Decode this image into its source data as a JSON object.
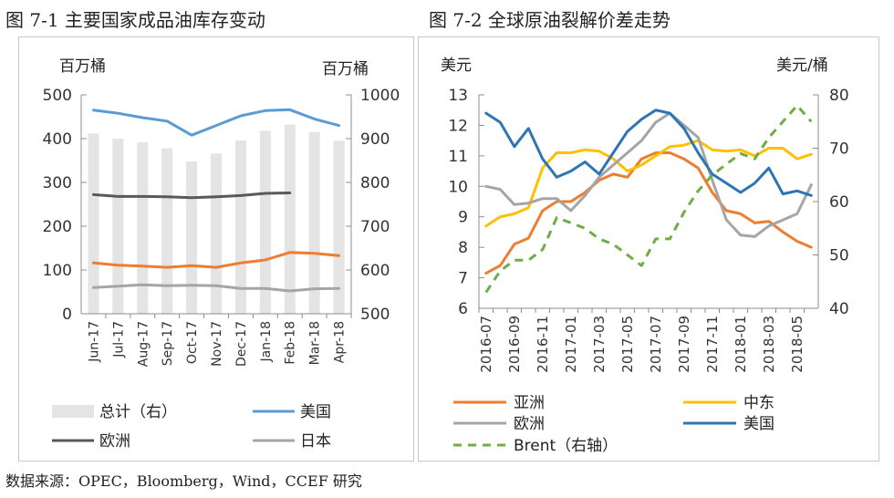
{
  "figure1": {
    "title": "图 7-1  主要国家成品油库存变动",
    "left_unit": "百万桶",
    "right_unit": "百万桶"
  },
  "figure2": {
    "title": "图 7-2  全球原油裂解价差走势",
    "left_unit": "美元",
    "right_unit": "美元/桶"
  },
  "source": "数据来源：OPEC，Bloomberg，Wind，CCEF 研究",
  "chart_data": [
    {
      "type": "line",
      "categories": [
        "Jun-17",
        "Jul-17",
        "Aug-17",
        "Sep-17",
        "Oct-17",
        "Nov-17",
        "Dec-17",
        "Jan-18",
        "Feb-18",
        "Mar-18",
        "Apr-18"
      ],
      "left_ylim": [
        0,
        500
      ],
      "left_ticks": [
        0,
        100,
        200,
        300,
        400,
        500
      ],
      "right_ylim": [
        500,
        1000
      ],
      "right_ticks": [
        500,
        600,
        700,
        800,
        900,
        1000
      ],
      "bars": {
        "name": "总计（右）",
        "color": "#e4e4e4",
        "axis": "right",
        "values": [
          912,
          900,
          892,
          878,
          848,
          866,
          896,
          918,
          932,
          915,
          895
        ]
      },
      "series": [
        {
          "name": "美国",
          "color": "#5b9bd5",
          "axis": "left",
          "values": [
            465,
            458,
            448,
            440,
            408,
            430,
            452,
            464,
            466,
            445,
            430
          ]
        },
        {
          "name": "欧洲",
          "color": "#595959",
          "axis": "left",
          "values": [
            272,
            268,
            268,
            267,
            265,
            267,
            270,
            275,
            276,
            null,
            null
          ]
        },
        {
          "name": "日本",
          "color": "#a5a5a5",
          "axis": "left",
          "values": [
            60,
            63,
            66,
            64,
            65,
            64,
            58,
            58,
            52,
            57,
            58
          ]
        },
        {
          "name": "",
          "color": "#ed7d31",
          "axis": "left",
          "values": [
            116,
            111,
            109,
            106,
            110,
            106,
            116,
            123,
            140,
            138,
            133
          ]
        }
      ],
      "legend": [
        "总计（右）",
        "美国",
        "欧洲",
        "日本"
      ]
    },
    {
      "type": "line",
      "x": [
        "2016-07",
        "2016-08",
        "2016-09",
        "2016-10",
        "2016-11",
        "2016-12",
        "2017-01",
        "2017-02",
        "2017-03",
        "2017-04",
        "2017-05",
        "2017-06",
        "2017-07",
        "2017-08",
        "2017-09",
        "2017-10",
        "2017-11",
        "2017-12",
        "2018-01",
        "2018-02",
        "2018-03",
        "2018-04",
        "2018-05",
        "2018-06"
      ],
      "x_tick_labels": [
        "2016-07",
        "2016-09",
        "2016-11",
        "2017-01",
        "2017-03",
        "2017-05",
        "2017-07",
        "2017-09",
        "2017-11",
        "2018-01",
        "2018-03",
        "2018-05"
      ],
      "left_ylim": [
        6,
        13
      ],
      "left_ticks": [
        6,
        7,
        8,
        9,
        10,
        11,
        12,
        13
      ],
      "right_ylim": [
        40,
        80
      ],
      "right_ticks": [
        40,
        50,
        60,
        70,
        80
      ],
      "series": [
        {
          "name": "亚洲",
          "color": "#ed7d31",
          "axis": "left",
          "dash": false,
          "values": [
            7.15,
            7.4,
            8.1,
            8.3,
            9.2,
            9.5,
            9.5,
            9.8,
            10.2,
            10.4,
            10.3,
            10.9,
            11.1,
            11.1,
            10.9,
            10.6,
            9.8,
            9.2,
            9.1,
            8.8,
            8.85,
            8.5,
            8.2,
            8.0
          ]
        },
        {
          "name": "中东",
          "color": "#ffc000",
          "axis": "left",
          "dash": false,
          "values": [
            8.7,
            9.0,
            9.1,
            9.3,
            10.6,
            11.1,
            11.1,
            11.2,
            11.15,
            10.9,
            10.5,
            10.7,
            11.0,
            11.3,
            11.35,
            11.5,
            11.2,
            11.15,
            11.2,
            11.0,
            11.25,
            11.25,
            10.9,
            11.05
          ]
        },
        {
          "name": "欧洲",
          "color": "#a5a5a5",
          "axis": "left",
          "dash": false,
          "values": [
            10.0,
            9.9,
            9.4,
            9.45,
            9.6,
            9.6,
            9.2,
            9.7,
            10.3,
            10.7,
            11.1,
            11.5,
            12.1,
            12.4,
            12.0,
            11.6,
            10.2,
            8.9,
            8.4,
            8.35,
            8.7,
            8.9,
            9.1,
            10.05
          ]
        },
        {
          "name": "美国",
          "color": "#2e75b6",
          "axis": "left",
          "dash": false,
          "values": [
            12.4,
            12.1,
            11.3,
            11.9,
            10.9,
            10.3,
            10.5,
            10.8,
            10.4,
            11.1,
            11.8,
            12.2,
            12.5,
            12.4,
            11.9,
            11.1,
            10.4,
            10.1,
            9.8,
            10.1,
            10.6,
            9.75,
            9.85,
            9.7
          ]
        },
        {
          "name": "Brent（右轴）",
          "color": "#70ad47",
          "axis": "right",
          "dash": true,
          "values": [
            43,
            47,
            49,
            49,
            51,
            57,
            56,
            55,
            53,
            52,
            50,
            48,
            53,
            53,
            58,
            62,
            65,
            67,
            69,
            68,
            72,
            75,
            78,
            75
          ]
        }
      ],
      "legend": [
        "亚洲",
        "中东",
        "欧洲",
        "美国",
        "Brent（右轴）"
      ]
    }
  ]
}
